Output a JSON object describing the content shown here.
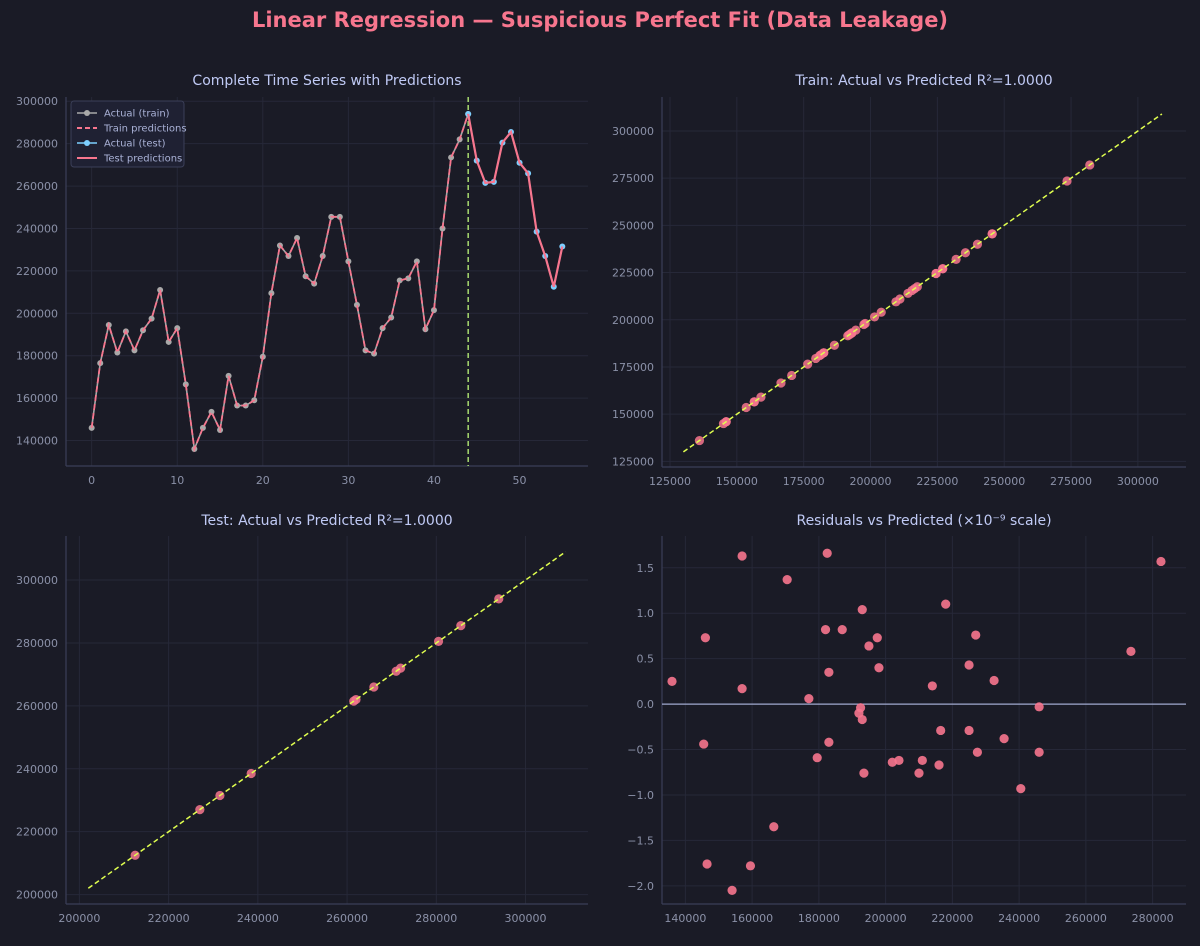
{
  "figure": {
    "title": "Linear Regression — Suspicious Perfect Fit (Data Leakage)"
  },
  "colors": {
    "background": "#1a1b26",
    "axis": "#3b3f58",
    "grid": "#262838",
    "text": "#c0caf5",
    "tick_text": "#8b91a8",
    "actual_train": "#a9a9a9",
    "train_pred": "#f7768e",
    "actual_test": "#7dcfff",
    "test_pred": "#f7768e",
    "split_line": "#9ece6a",
    "ideal_line": "#e0ff4f",
    "scatter": "#f7768e",
    "zero_line": "#c0caf5"
  },
  "chart_data": [
    {
      "id": "timeseries",
      "type": "line",
      "title": "Complete Time Series with Predictions",
      "xlim": [
        -3,
        58
      ],
      "ylim": [
        128000,
        302000
      ],
      "xticks": [
        0,
        10,
        20,
        30,
        40,
        50
      ],
      "yticks": [
        140000,
        160000,
        180000,
        200000,
        220000,
        240000,
        260000,
        280000,
        300000
      ],
      "split_x": 44,
      "legend_position": "upper-left",
      "legend": [
        "Actual (train)",
        "Train predictions",
        "Actual (test)",
        "Test predictions"
      ],
      "train": {
        "x": [
          0,
          1,
          2,
          3,
          4,
          5,
          6,
          7,
          8,
          9,
          10,
          11,
          12,
          13,
          14,
          15,
          16,
          17,
          18,
          19,
          20,
          21,
          22,
          23,
          24,
          25,
          26,
          27,
          28,
          29,
          30,
          31,
          32,
          33,
          34,
          35,
          36,
          37,
          38,
          39,
          40,
          41,
          42,
          43,
          44
        ],
        "y": [
          146000,
          176500,
          194500,
          181500,
          191500,
          182500,
          192000,
          197500,
          211000,
          186500,
          193000,
          166500,
          136000,
          146000,
          153500,
          145000,
          170500,
          156500,
          156500,
          159000,
          179500,
          209500,
          232000,
          227000,
          235500,
          217500,
          214000,
          227000,
          245500,
          245500,
          224500,
          204000,
          182500,
          181000,
          193000,
          198000,
          215500,
          216500,
          224500,
          192500,
          201500,
          240000,
          273500,
          282000,
          294000
        ]
      },
      "test": {
        "x": [
          44,
          45,
          46,
          47,
          48,
          49,
          50,
          51,
          52,
          53,
          54,
          55
        ],
        "y": [
          294000,
          272000,
          261500,
          262000,
          280500,
          285500,
          271000,
          266000,
          238500,
          227000,
          212500,
          231500
        ]
      }
    },
    {
      "id": "train_scatter",
      "type": "scatter",
      "title": "Train: Actual vs Predicted  R²=1.0000",
      "xlim": [
        122000,
        318000
      ],
      "ylim": [
        122000,
        318000
      ],
      "xticks": [
        125000,
        150000,
        175000,
        200000,
        225000,
        250000,
        275000,
        300000
      ],
      "yticks": [
        125000,
        150000,
        175000,
        200000,
        225000,
        250000,
        275000,
        300000
      ],
      "ideal_line": [
        130000,
        309000
      ],
      "values": [
        136000,
        146000,
        146000,
        145000,
        153500,
        156500,
        156500,
        159000,
        166500,
        170500,
        176500,
        179500,
        181000,
        181500,
        182500,
        182500,
        186500,
        191500,
        192000,
        192500,
        193000,
        193000,
        194500,
        197500,
        198000,
        201500,
        204000,
        209500,
        211000,
        214000,
        215500,
        216500,
        217500,
        224500,
        224500,
        227000,
        227000,
        232000,
        235500,
        240000,
        245500,
        245500,
        273500,
        282000
      ]
    },
    {
      "id": "test_scatter",
      "type": "scatter",
      "title": "Test: Actual vs Predicted  R²=1.0000",
      "xlim": [
        197000,
        314000
      ],
      "ylim": [
        197000,
        314000
      ],
      "xticks": [
        200000,
        220000,
        240000,
        260000,
        280000,
        300000
      ],
      "yticks": [
        200000,
        220000,
        240000,
        260000,
        280000,
        300000
      ],
      "ideal_line": [
        202000,
        309000
      ],
      "values": [
        212500,
        227000,
        231500,
        238500,
        261500,
        262000,
        266000,
        271000,
        272000,
        280500,
        285500,
        294000
      ]
    },
    {
      "id": "residuals",
      "type": "scatter",
      "title": "Residuals vs Predicted  (×10⁻⁹ scale)",
      "xlim": [
        133000,
        290000
      ],
      "ylim": [
        -2.2,
        1.85
      ],
      "xticks": [
        140000,
        160000,
        180000,
        200000,
        220000,
        240000,
        260000,
        280000
      ],
      "yticks": [
        -2.0,
        -1.5,
        -1.0,
        -0.5,
        0.0,
        0.5,
        1.0,
        1.5
      ],
      "ytick_labels": [
        "−2.0",
        "−1.5",
        "−1.0",
        "−0.5",
        "0.0",
        "0.5",
        "1.0",
        "1.5"
      ],
      "zero_line": 0,
      "x": [
        136000,
        145500,
        146000,
        146500,
        154000,
        157000,
        157000,
        159500,
        166500,
        170500,
        177000,
        179500,
        182000,
        182500,
        183000,
        183000,
        187000,
        192000,
        192500,
        193000,
        193000,
        193500,
        195000,
        197500,
        198000,
        202000,
        204000,
        210000,
        211000,
        214000,
        216000,
        216500,
        218000,
        225000,
        225000,
        227000,
        227500,
        232500,
        235500,
        240500,
        246000,
        246000,
        273500,
        282500
      ],
      "y": [
        0.25,
        -0.44,
        0.73,
        -1.76,
        -2.05,
        0.17,
        1.63,
        -1.78,
        -1.35,
        1.37,
        0.06,
        -0.59,
        0.82,
        1.66,
        -0.42,
        0.35,
        0.82,
        -0.1,
        -0.04,
        -0.17,
        1.04,
        -0.76,
        0.64,
        0.73,
        0.4,
        -0.64,
        -0.62,
        -0.76,
        -0.62,
        0.2,
        -0.67,
        -0.29,
        1.1,
        0.43,
        -0.29,
        0.76,
        -0.53,
        0.26,
        -0.38,
        -0.93,
        -0.03,
        -0.53,
        0.58,
        1.57
      ]
    }
  ]
}
